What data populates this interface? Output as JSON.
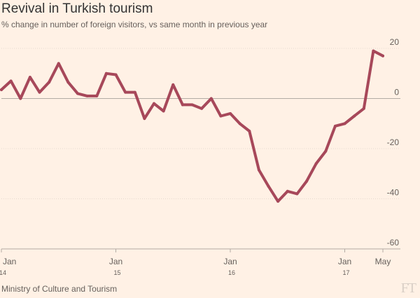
{
  "chart_data": {
    "type": "line",
    "title": "Revival in Turkish tourism",
    "subtitle": "% change in number of foreign visitors, vs same month in previous year",
    "source": "Ministry of Culture and Tourism",
    "logo_text": "FT",
    "xlabel": "",
    "ylabel": "",
    "ylim": [
      -60,
      20
    ],
    "yticks": [
      20,
      0,
      -20,
      -40,
      -60
    ],
    "grid": true,
    "x_tick_labels": [
      {
        "index": 0,
        "month": "Jan",
        "year": "14"
      },
      {
        "index": 12,
        "month": "Jan",
        "year": "15"
      },
      {
        "index": 24,
        "month": "Jan",
        "year": "16"
      },
      {
        "index": 36,
        "month": "Jan",
        "year": "17"
      },
      {
        "index": 40,
        "month": "May",
        "year": ""
      }
    ],
    "series": [
      {
        "name": "Foreign visitors % change",
        "color": "#a7485a",
        "values": [
          3.5,
          7,
          0,
          8.5,
          2.5,
          6.5,
          14,
          6.5,
          2,
          1,
          1,
          10,
          9.5,
          2.5,
          2.5,
          -8,
          -2,
          -5,
          5.5,
          -2.5,
          -2.5,
          -4,
          0,
          -7,
          -6,
          -10,
          -13,
          -28.5,
          -35,
          -41,
          -37,
          -38,
          -33,
          -26,
          -21,
          -11,
          -10,
          -7,
          -4,
          19,
          17
        ]
      }
    ]
  }
}
